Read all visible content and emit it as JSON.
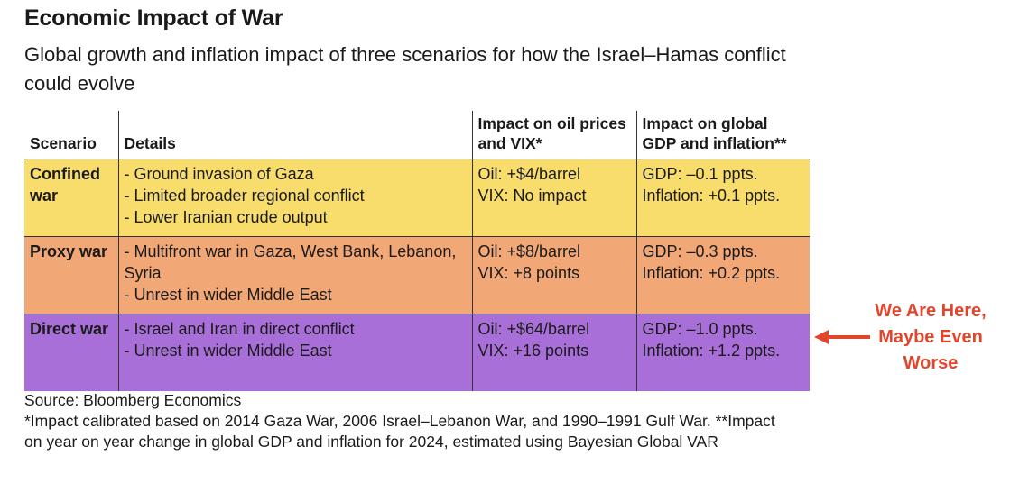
{
  "title": "Economic Impact of War",
  "subtitle": "Global growth and inflation impact of three scenarios for how the Israel–Hamas conflict could evolve",
  "colors": {
    "confined": "#f8dd6c",
    "proxy": "#f2a777",
    "direct": "#a86fd9",
    "annotation": "#e3452c"
  },
  "chart_data": {
    "type": "table",
    "columns": [
      "Scenario",
      "Details",
      "Impact on oil prices and VIX*",
      "Impact on global GDP and inflation**"
    ],
    "rows": [
      {
        "scenario": "Confined war",
        "details": [
          "- Ground invasion of Gaza",
          "- Limited broader regional conflict",
          "- Lower Iranian crude output"
        ],
        "oil": "Oil: +$4/barrel",
        "vix": "VIX: No impact",
        "gdp": "GDP: –0.1 ppts.",
        "inflation": "Inflation: +0.1 ppts."
      },
      {
        "scenario": "Proxy war",
        "details": [
          "- Multifront war in Gaza, West Bank, Lebanon, Syria",
          "- Unrest in wider Middle East"
        ],
        "oil": "Oil: +$8/barrel",
        "vix": "VIX: +8 points",
        "gdp": "GDP: –0.3 ppts.",
        "inflation": "Inflation: +0.2 ppts."
      },
      {
        "scenario": "Direct war",
        "details": [
          "- Israel and Iran in direct conflict",
          "- Unrest in wider Middle East"
        ],
        "oil": "Oil: +$64/barrel",
        "vix": "VIX: +16 points",
        "gdp": "GDP: –1.0 ppts.",
        "inflation": "Inflation: +1.2 ppts."
      }
    ]
  },
  "annotation": "We Are Here, Maybe Even Worse",
  "notes": {
    "source": "Source: Bloomberg Economics",
    "footnote": "*Impact calibrated based on 2014 Gaza War, 2006 Israel–Lebanon War, and 1990–1991 Gulf War. **Impact on year on year change in global GDP and inflation for 2024, estimated using Bayesian Global VAR"
  }
}
